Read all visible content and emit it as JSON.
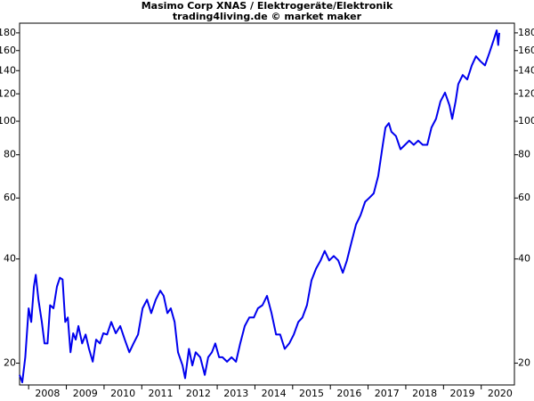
{
  "chart_data": {
    "type": "line",
    "title": "Masimo Corp XNAS / Elektrogeräte/Elektronik",
    "subtitle": "trading4living.de © market maker",
    "yscale": "log",
    "xlim": [
      2007.76,
      2020.88
    ],
    "ylim": [
      17.3,
      192
    ],
    "xticks": [
      2008,
      2009,
      2010,
      2011,
      2012,
      2013,
      2014,
      2015,
      2016,
      2017,
      2018,
      2019,
      2020
    ],
    "yticks": [
      20,
      40,
      60,
      80,
      100,
      120,
      140,
      160,
      180
    ],
    "x": [
      2007.76,
      2007.83,
      2007.91,
      2008.0,
      2008.07,
      2008.14,
      2008.19,
      2008.26,
      2008.35,
      2008.42,
      2008.5,
      2008.57,
      2008.66,
      2008.75,
      2008.83,
      2008.9,
      2008.97,
      2009.04,
      2009.11,
      2009.18,
      2009.25,
      2009.32,
      2009.42,
      2009.51,
      2009.6,
      2009.7,
      2009.79,
      2009.89,
      2009.98,
      2010.08,
      2010.19,
      2010.31,
      2010.43,
      2010.55,
      2010.67,
      2010.78,
      2010.9,
      2011.02,
      2011.14,
      2011.25,
      2011.37,
      2011.49,
      2011.58,
      2011.68,
      2011.77,
      2011.87,
      2011.96,
      2012.08,
      2012.15,
      2012.25,
      2012.34,
      2012.43,
      2012.55,
      2012.67,
      2012.76,
      2012.86,
      2012.95,
      2013.05,
      2013.14,
      2013.26,
      2013.38,
      2013.5,
      2013.61,
      2013.73,
      2013.85,
      2013.97,
      2014.08,
      2014.2,
      2014.32,
      2014.44,
      2014.56,
      2014.67,
      2014.79,
      2014.91,
      2015.03,
      2015.15,
      2015.26,
      2015.38,
      2015.5,
      2015.62,
      2015.74,
      2015.85,
      2015.97,
      2016.09,
      2016.21,
      2016.33,
      2016.44,
      2016.56,
      2016.68,
      2016.8,
      2016.92,
      2017.03,
      2017.15,
      2017.27,
      2017.39,
      2017.46,
      2017.55,
      2017.62,
      2017.74,
      2017.86,
      2017.98,
      2018.09,
      2018.21,
      2018.33,
      2018.45,
      2018.57,
      2018.68,
      2018.8,
      2018.92,
      2019.04,
      2019.16,
      2019.23,
      2019.32,
      2019.39,
      2019.51,
      2019.63,
      2019.75,
      2019.86,
      2019.98,
      2020.1,
      2020.22,
      2020.34,
      2020.41,
      2020.45,
      2020.48
    ],
    "series": [
      {
        "color": "#0000ee",
        "values": [
          18.5,
          17.6,
          20.8,
          28.8,
          26.3,
          33.3,
          36,
          30.5,
          26.3,
          22.8,
          22.8,
          29.4,
          28.8,
          33.3,
          35.3,
          34.9,
          26.3,
          27.1,
          21.5,
          24.4,
          23.4,
          25.6,
          22.8,
          24.2,
          22.0,
          20.2,
          23.4,
          22.8,
          24.4,
          24.2,
          26.3,
          24.4,
          25.6,
          23.4,
          21.5,
          22.8,
          24.2,
          28.8,
          30.5,
          27.9,
          30.5,
          32.4,
          31.3,
          27.9,
          28.8,
          26.3,
          21.5,
          19.7,
          18.1,
          22.0,
          19.7,
          21.5,
          20.8,
          18.5,
          20.8,
          21.5,
          22.8,
          20.8,
          20.8,
          20.2,
          20.8,
          20.2,
          22.8,
          25.6,
          27.1,
          27.1,
          28.8,
          29.4,
          31.3,
          27.9,
          24.2,
          24.2,
          22.0,
          22.8,
          24.2,
          26.3,
          27.1,
          29.4,
          34.7,
          37.5,
          39.6,
          42.2,
          39.6,
          40.8,
          39.6,
          36.5,
          39.6,
          44.7,
          50.3,
          53.5,
          58.5,
          60.0,
          61.9,
          69.6,
          85.5,
          95.9,
          98.7,
          93.2,
          90.6,
          83.0,
          85.5,
          87.9,
          85.5,
          87.9,
          85.5,
          85.5,
          95.9,
          101.6,
          114.1,
          121,
          111,
          101.6,
          114.1,
          128,
          136,
          132,
          145,
          154,
          149,
          145,
          158,
          173,
          183,
          166,
          180
        ]
      }
    ]
  }
}
